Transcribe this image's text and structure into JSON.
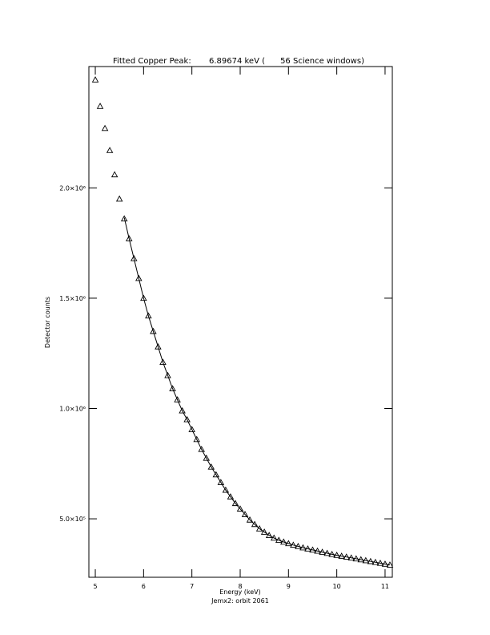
{
  "chart_data": {
    "type": "scatter",
    "title": "Fitted Copper Peak:       6.89674 keV (      56 Science windows)",
    "x_label": "Energy (keV)",
    "y_label": "Detector counts",
    "caption": "Jemx2: orbit 2061",
    "x": [
      5.0,
      5.1,
      5.2,
      5.3,
      5.4,
      5.5,
      5.6,
      5.7,
      5.8,
      5.9,
      6.0,
      6.1,
      6.2,
      6.3,
      6.4,
      6.5,
      6.6,
      6.7,
      6.8,
      6.9,
      7.0,
      7.1,
      7.2,
      7.3,
      7.4,
      7.5,
      7.6,
      7.7,
      7.8,
      7.9,
      8.0,
      8.1,
      8.2,
      8.3,
      8.4,
      8.5,
      8.6,
      8.7,
      8.8,
      8.9,
      9.0,
      9.1,
      9.2,
      9.3,
      9.4,
      9.5,
      9.6,
      9.7,
      9.8,
      9.9,
      10.0,
      10.1,
      10.2,
      10.3,
      10.4,
      10.5,
      10.6,
      10.7,
      10.8,
      10.9,
      11.0,
      11.1
    ],
    "series": [
      {
        "color": "#000000",
        "marker": "triangle",
        "values": [
          2490000,
          2370000,
          2270000,
          2170000,
          2060000,
          1950000,
          1860000,
          1770000,
          1680000,
          1590000,
          1500000,
          1420000,
          1350000,
          1280000,
          1210000,
          1150000,
          1090000,
          1040000,
          990000,
          950000,
          905000,
          860000,
          815000,
          775000,
          735000,
          700000,
          665000,
          630000,
          600000,
          570000,
          545000,
          520000,
          495000,
          475000,
          455000,
          440000,
          425000,
          413000,
          403000,
          395000,
          388000,
          381000,
          375000,
          369000,
          364000,
          359000,
          354000,
          349000,
          344000,
          339000,
          335000,
          331000,
          327000,
          323000,
          319000,
          315000,
          311000,
          307000,
          303000,
          299000,
          295000,
          291000
        ]
      },
      {
        "color": "#000000",
        "marker": "line",
        "values": [
          null,
          null,
          null,
          null,
          null,
          null,
          1865000,
          1770000,
          1680000,
          1590000,
          1500000,
          1420000,
          1350000,
          1280000,
          1210000,
          1150000,
          1090000,
          1040000,
          990000,
          950000,
          905000,
          860000,
          815000,
          775000,
          735000,
          700000,
          665000,
          630000,
          600000,
          570000,
          545000,
          520000,
          495000,
          475000,
          455000,
          440000,
          425000,
          413000,
          403000,
          395000,
          388000,
          381000,
          375000,
          369000,
          364000,
          359000,
          354000,
          349000,
          344000,
          339000,
          335000,
          331000,
          327000,
          323000,
          319000,
          315000,
          311000,
          307000,
          303000,
          299000,
          295000,
          291000
        ]
      }
    ],
    "xlim": [
      4.867,
      11.15
    ],
    "ylim": [
      235000,
      2550000
    ],
    "xticks": [
      5,
      6,
      7,
      8,
      9,
      10,
      11
    ],
    "yticks": [
      {
        "value": 500000,
        "label": "5.0×10⁵"
      },
      {
        "value": 1000000,
        "label": "1.0×10⁶"
      },
      {
        "value": 1500000,
        "label": "1.5×10⁶"
      },
      {
        "value": 2000000,
        "label": "2.0×10⁶"
      }
    ],
    "grid": false
  }
}
